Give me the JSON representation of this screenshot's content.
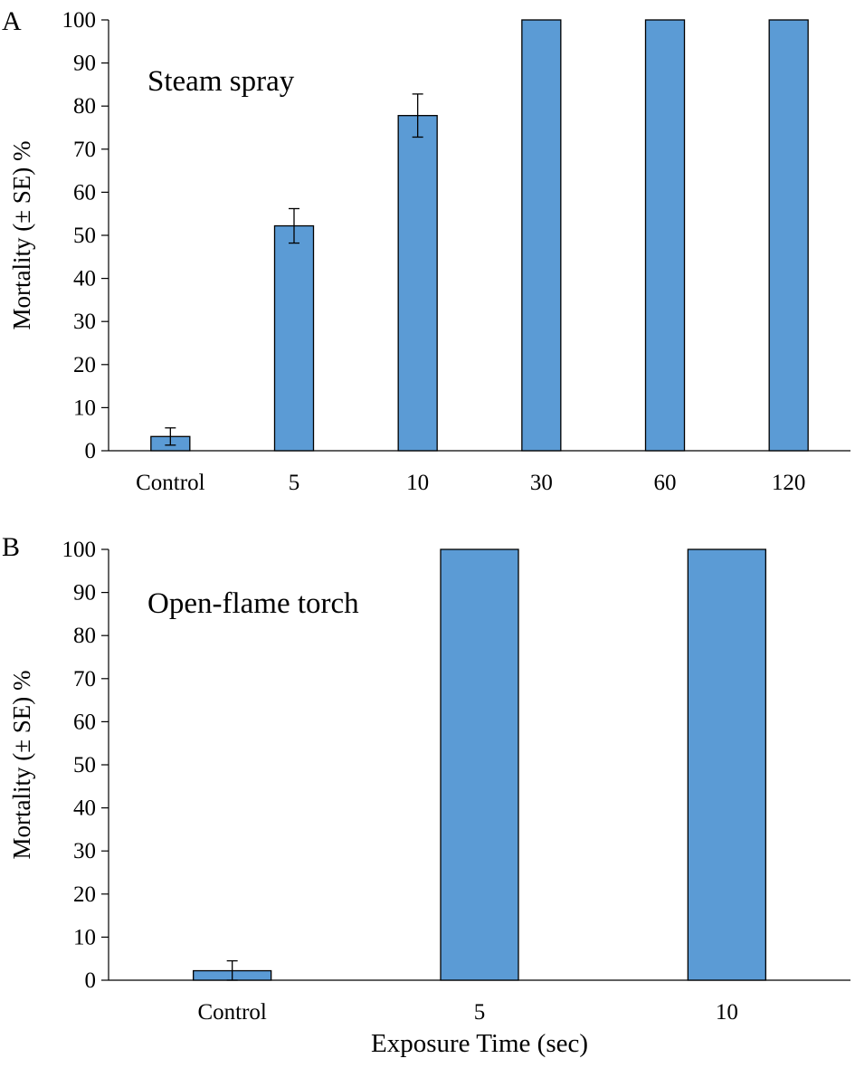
{
  "figure": {
    "xlabel": "Exposure Time (sec)"
  },
  "chart_data": [
    {
      "type": "bar",
      "panel": "A",
      "title": "Steam spray",
      "ylabel": "Mortality (± SE) %",
      "xlabel": "",
      "ylim": [
        0,
        100
      ],
      "yticks": [
        0,
        10,
        20,
        30,
        40,
        50,
        60,
        70,
        80,
        90,
        100
      ],
      "categories": [
        "Control",
        "5",
        "10",
        "30",
        "60",
        "120"
      ],
      "values": [
        3.3,
        52.2,
        77.8,
        100,
        100,
        100
      ],
      "errors": [
        2.0,
        4.0,
        5.0,
        null,
        null,
        null
      ],
      "bar_color": "#5B9BD5",
      "grid": false,
      "legend": "none"
    },
    {
      "type": "bar",
      "panel": "B",
      "title": "Open-flame torch",
      "ylabel": "Mortality (± SE) %",
      "xlabel": "Exposure Time (sec)",
      "ylim": [
        0,
        100
      ],
      "yticks": [
        0,
        10,
        20,
        30,
        40,
        50,
        60,
        70,
        80,
        90,
        100
      ],
      "categories": [
        "Control",
        "5",
        "10"
      ],
      "values": [
        2.2,
        100,
        100
      ],
      "errors": [
        2.3,
        null,
        null
      ],
      "bar_color": "#5B9BD5",
      "grid": false,
      "legend": "none"
    }
  ]
}
